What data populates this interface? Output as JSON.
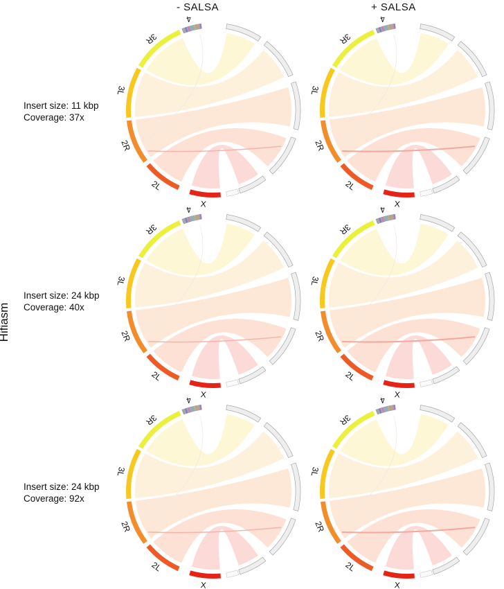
{
  "column_headers": [
    "- SALSA",
    "+ SALSA"
  ],
  "side_label": "Hifiasm",
  "rows": [
    {
      "insert_size": "Insert size: 11 kbp",
      "coverage": "Coverage: 37x"
    },
    {
      "insert_size": "Insert size: 24 kbp",
      "coverage": "Coverage: 40x"
    },
    {
      "insert_size": "Insert size: 24 kbp",
      "coverage": "Coverage: 92x"
    }
  ],
  "chromosomes": [
    {
      "name": "X",
      "color": "#e52316",
      "ribbon": "#fbd3d0"
    },
    {
      "name": "2L",
      "color": "#ee5a26",
      "ribbon": "#fcdccd"
    },
    {
      "name": "2R",
      "color": "#f38d2c",
      "ribbon": "#fde3cf"
    },
    {
      "name": "3L",
      "color": "#f8c81f",
      "ribbon": "#fdeed6"
    },
    {
      "name": "3R",
      "color": "#eaf03c",
      "ribbon": "#fdf6cf"
    },
    {
      "name": "4",
      "color": "#a7a7a7",
      "ribbon": "#f1f1f1"
    }
  ],
  "contig_track_color": "#eeeeee"
}
